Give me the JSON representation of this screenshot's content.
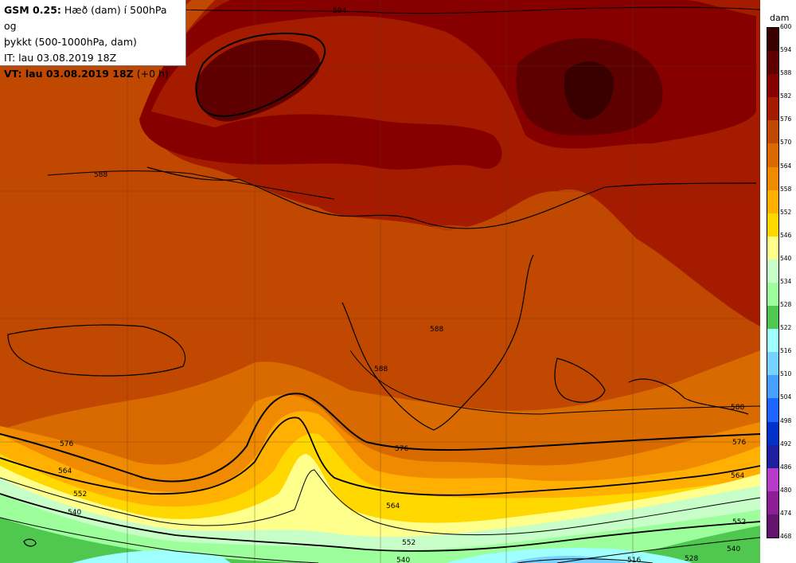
{
  "info": {
    "model": "GSM 0.25:",
    "desc1": "Hæð (dam) í 500hPa og",
    "desc2": "þykkt (500-1000hPa, dam)",
    "it": "IT: lau 03.08.2019 18Z",
    "vt_bold": "VT: lau 03.08.2019 18Z",
    "vt_lead": "(+0 h)"
  },
  "legend": {
    "unit": "dam",
    "levels": [
      "600",
      "594",
      "588",
      "582",
      "576",
      "570",
      "564",
      "558",
      "552",
      "546",
      "540",
      "534",
      "528",
      "522",
      "516",
      "510",
      "504",
      "498",
      "492",
      "486",
      "480",
      "474",
      "468"
    ],
    "colors": [
      "#3a0000",
      "#5e0000",
      "#860000",
      "#a51b00",
      "#c04800",
      "#d96a00",
      "#f08a00",
      "#ffb000",
      "#ffd800",
      "#ffff8c",
      "#c8ffc8",
      "#9cff9c",
      "#50c850",
      "#a0ffff",
      "#78d2ff",
      "#46a0ff",
      "#1e64ff",
      "#0032c8",
      "#1e1ea0",
      "#b43cc8",
      "#8c1e96",
      "#64146e",
      "#3c0a46"
    ]
  },
  "contour_labels": {
    "h594": "594",
    "h588a": "588",
    "h588b": "588",
    "h588c": "588",
    "h588d": "588",
    "h576a": "576",
    "h576b": "576",
    "h576c": "576",
    "h564a": "564",
    "h564b": "564",
    "h564c": "564",
    "h552a": "552",
    "h552b": "552",
    "h552c": "552",
    "h540a": "540",
    "h540b": "540",
    "h540c": "540",
    "h528": "528",
    "h516": "516"
  }
}
